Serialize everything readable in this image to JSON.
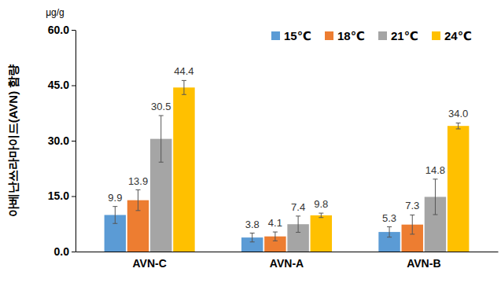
{
  "chart_data": {
    "type": "bar",
    "y_label": "아베난쓰라마이드(AVN) 함량",
    "annotations": [
      "μg/g"
    ],
    "categories": [
      "AVN-C",
      "AVN-A",
      "AVN-B"
    ],
    "series": [
      {
        "name": "15℃",
        "color": "#5b9bd5",
        "values": [
          9.9,
          3.8,
          5.3
        ],
        "value_labels": [
          "9.9",
          "3.8",
          "5.3"
        ],
        "errors": [
          2.3,
          1.2,
          1.4
        ]
      },
      {
        "name": "18℃",
        "color": "#ed7d31",
        "values": [
          13.9,
          4.1,
          7.3
        ],
        "value_labels": [
          "13.9",
          "4.1",
          "7.3"
        ],
        "errors": [
          2.8,
          1.2,
          2.6
        ]
      },
      {
        "name": "21℃",
        "color": "#a5a5a5",
        "values": [
          30.5,
          7.4,
          14.8
        ],
        "value_labels": [
          "30.5",
          "7.4",
          "14.8"
        ],
        "errors": [
          6.3,
          2.2,
          4.8
        ]
      },
      {
        "name": "24℃",
        "color": "#ffc000",
        "values": [
          44.4,
          9.8,
          34.0
        ],
        "value_labels": [
          "44.4",
          "9.8",
          "34.0"
        ],
        "errors": [
          1.9,
          0.6,
          0.8
        ]
      }
    ],
    "ylim": [
      0,
      60
    ],
    "yticks": [
      {
        "value": 0,
        "label": "0.0"
      },
      {
        "value": 15,
        "label": "15.0"
      },
      {
        "value": 30,
        "label": "30.0"
      },
      {
        "value": 45,
        "label": "45.0"
      },
      {
        "value": 60,
        "label": "60.0"
      }
    ],
    "data_labels": true,
    "legend": "top-right",
    "grid": false
  }
}
